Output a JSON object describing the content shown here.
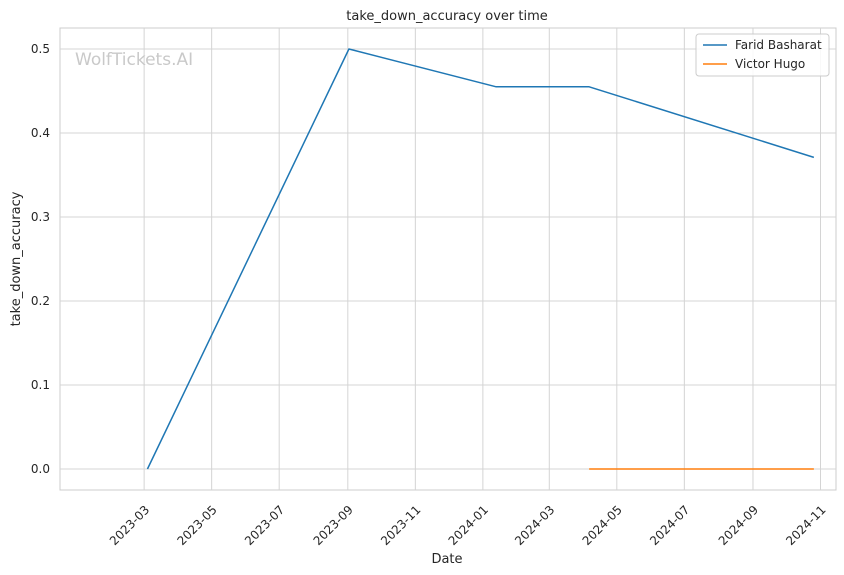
{
  "chart_data": {
    "type": "line",
    "title": "take_down_accuracy over time",
    "xlabel": "Date",
    "ylabel": "take_down_accuracy",
    "watermark": "WolfTickets.AI",
    "xlim": [
      "2022-12-15",
      "2024-11-15"
    ],
    "ylim": [
      -0.025,
      0.525
    ],
    "x_ticks": [
      "2023-03",
      "2023-05",
      "2023-07",
      "2023-09",
      "2023-11",
      "2024-01",
      "2024-03",
      "2024-05",
      "2024-07",
      "2024-09",
      "2024-11"
    ],
    "y_ticks": [
      "0.0",
      "0.1",
      "0.2",
      "0.3",
      "0.4",
      "0.5"
    ],
    "grid": true,
    "legend_position": "top-right",
    "series": [
      {
        "name": "Farid Basharat",
        "color": "#1f77b4",
        "points": [
          {
            "x": "2023-03-04",
            "y": 0.0
          },
          {
            "x": "2023-09-02",
            "y": 0.5
          },
          {
            "x": "2024-01-13",
            "y": 0.455
          },
          {
            "x": "2024-04-06",
            "y": 0.455
          },
          {
            "x": "2024-10-26",
            "y": 0.371
          }
        ]
      },
      {
        "name": "Victor Hugo",
        "color": "#ff7f0e",
        "points": [
          {
            "x": "2024-04-06",
            "y": 0.0
          },
          {
            "x": "2024-10-26",
            "y": 0.0
          }
        ]
      }
    ]
  }
}
